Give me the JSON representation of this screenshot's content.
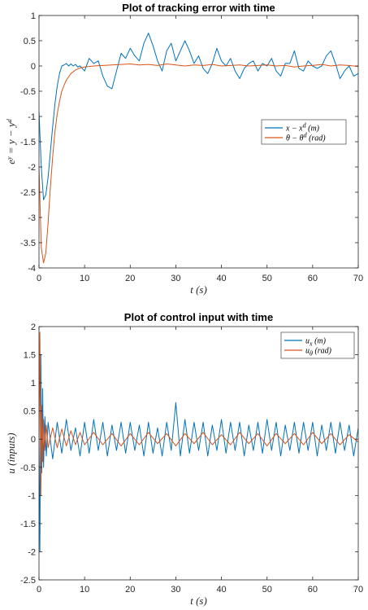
{
  "chart_data": [
    {
      "type": "line",
      "title": "Plot of tracking error with time",
      "xlabel": "t (s)",
      "ylabel": "e^y = y − y^d",
      "xlim": [
        0,
        70
      ],
      "ylim": [
        -4,
        1
      ],
      "xticks": [
        "0",
        "10",
        "20",
        "30",
        "40",
        "50",
        "60",
        "70"
      ],
      "yticks": [
        "1",
        "0.5",
        "0",
        "-0.5",
        "-1",
        "-1.5",
        "-2",
        "-2.5",
        "-3",
        "-3.5",
        "-4"
      ],
      "grid": false,
      "legend_position": "right",
      "series": [
        {
          "name": "x − x^d (m)",
          "color": "#0072BD",
          "x": [
            0,
            0.5,
            1,
            1.5,
            2,
            2.5,
            3,
            3.5,
            4,
            4.5,
            5,
            5.5,
            6,
            6.5,
            7,
            7.5,
            8,
            8.5,
            9,
            9.5,
            10,
            11,
            12,
            13,
            14,
            15,
            16,
            17,
            18,
            19,
            20,
            21,
            22,
            23,
            24,
            25,
            26,
            27,
            28,
            29,
            30,
            31,
            32,
            33,
            34,
            35,
            36,
            37,
            38,
            39,
            40,
            41,
            42,
            43,
            44,
            45,
            46,
            47,
            48,
            49,
            50,
            51,
            52,
            53,
            54,
            55,
            56,
            57,
            58,
            59,
            60,
            61,
            62,
            63,
            64,
            65,
            66,
            67,
            68,
            69,
            70
          ],
          "y": [
            -0.9,
            -2.0,
            -2.65,
            -2.55,
            -2.2,
            -1.7,
            -1.2,
            -0.75,
            -0.4,
            -0.15,
            0.0,
            0.02,
            0.05,
            0.0,
            0.04,
            0.0,
            0.03,
            -0.02,
            0.0,
            -0.05,
            -0.1,
            0.15,
            0.05,
            0.1,
            -0.2,
            -0.4,
            -0.45,
            -0.1,
            0.25,
            0.15,
            0.35,
            0.2,
            0.1,
            0.45,
            0.65,
            0.4,
            0.1,
            -0.1,
            0.3,
            0.45,
            0.1,
            0.3,
            0.5,
            0.3,
            0.05,
            0.2,
            -0.05,
            -0.15,
            0.05,
            0.35,
            0.1,
            0.0,
            0.15,
            -0.1,
            -0.25,
            -0.05,
            0.05,
            0.1,
            -0.1,
            0.05,
            0.0,
            0.15,
            -0.1,
            -0.2,
            0.05,
            0.05,
            0.3,
            -0.05,
            -0.1,
            0.1,
            0.0,
            -0.05,
            0.0,
            0.2,
            0.3,
            0.05,
            -0.25,
            -0.1,
            0.0,
            -0.2,
            -0.15
          ]
        },
        {
          "name": "θ − θ^d (rad)",
          "color": "#D95319",
          "x": [
            0,
            0.5,
            1,
            1.5,
            2,
            2.5,
            3,
            3.5,
            4,
            4.5,
            5,
            5.5,
            6,
            7,
            8,
            9,
            10,
            12,
            14,
            16,
            18,
            20,
            22,
            24,
            26,
            28,
            30,
            32,
            34,
            36,
            38,
            40,
            42,
            44,
            46,
            48,
            50,
            52,
            54,
            56,
            58,
            60,
            62,
            64,
            66,
            68,
            70
          ],
          "y": [
            -2.0,
            -3.6,
            -3.9,
            -3.7,
            -3.1,
            -2.4,
            -1.8,
            -1.3,
            -0.95,
            -0.7,
            -0.5,
            -0.38,
            -0.28,
            -0.15,
            -0.08,
            -0.04,
            -0.02,
            0.0,
            0.01,
            0.02,
            0.03,
            0.04,
            0.02,
            0.03,
            0.01,
            0.04,
            0.02,
            0.0,
            0.02,
            0.01,
            0.03,
            0.0,
            0.01,
            0.02,
            0.0,
            0.01,
            0.02,
            0.0,
            0.01,
            -0.02,
            0.0,
            0.01,
            0.03,
            0.0,
            0.02,
            0.01,
            -0.01
          ]
        }
      ]
    },
    {
      "type": "line",
      "title": "Plot of control input with time",
      "xlabel": "t (s)",
      "ylabel": "u (inputs)",
      "xlim": [
        0,
        70
      ],
      "ylim": [
        -2.5,
        2
      ],
      "xticks": [
        "0",
        "10",
        "20",
        "30",
        "40",
        "50",
        "60",
        "70"
      ],
      "yticks": [
        "2",
        "1.5",
        "1",
        "0.5",
        "0",
        "-0.5",
        "-1",
        "-1.5",
        "-2",
        "-2.5"
      ],
      "grid": false,
      "legend_position": "top-right",
      "series": [
        {
          "name": "u_x (m)",
          "color": "#0072BD",
          "x": [
            0,
            0.2,
            0.4,
            0.6,
            0.8,
            1,
            1.3,
            1.6,
            2,
            3,
            4,
            5,
            6,
            7,
            8,
            9,
            10,
            11,
            12,
            13,
            14,
            15,
            16,
            17,
            18,
            19,
            20,
            21,
            22,
            23,
            24,
            25,
            26,
            27,
            28,
            29,
            30,
            31,
            32,
            33,
            34,
            35,
            36,
            37,
            38,
            39,
            40,
            41,
            42,
            43,
            44,
            45,
            46,
            47,
            48,
            49,
            50,
            51,
            52,
            53,
            54,
            55,
            56,
            57,
            58,
            59,
            60,
            61,
            62,
            63,
            64,
            65,
            66,
            67,
            68,
            69,
            70
          ],
          "y": [
            0,
            -2.0,
            1.5,
            -0.6,
            0.9,
            -0.5,
            0.4,
            -0.3,
            0.3,
            -0.35,
            0.3,
            -0.25,
            0.35,
            -0.2,
            0.2,
            -0.3,
            0.3,
            -0.25,
            0.35,
            -0.2,
            0.3,
            -0.3,
            0.25,
            -0.2,
            0.3,
            -0.25,
            0.3,
            -0.2,
            0.25,
            -0.3,
            0.3,
            -0.25,
            0.2,
            -0.3,
            0.3,
            -0.2,
            0.65,
            -0.3,
            0.35,
            -0.25,
            0.3,
            -0.2,
            0.3,
            -0.3,
            0.25,
            -0.2,
            0.35,
            -0.25,
            0.3,
            -0.2,
            0.3,
            -0.3,
            0.25,
            -0.2,
            0.3,
            -0.25,
            0.35,
            -0.2,
            0.3,
            -0.3,
            0.25,
            -0.2,
            0.3,
            -0.25,
            0.3,
            -0.2,
            0.3,
            -0.3,
            0.25,
            -0.2,
            0.3,
            -0.25,
            0.3,
            -0.2,
            0.25,
            -0.3,
            0.2
          ]
        },
        {
          "name": "u_θ (rad)",
          "color": "#D95319",
          "x": [
            0,
            0.2,
            0.4,
            0.6,
            0.8,
            1,
            1.3,
            1.6,
            2,
            3,
            4,
            5,
            6,
            7,
            8,
            9,
            10,
            12,
            14,
            16,
            18,
            20,
            22,
            24,
            26,
            28,
            30,
            32,
            34,
            36,
            38,
            40,
            42,
            44,
            46,
            48,
            50,
            52,
            54,
            56,
            58,
            60,
            62,
            64,
            66,
            68,
            70
          ],
          "y": [
            0,
            1.9,
            -1.0,
            0.6,
            -0.4,
            0.35,
            -0.2,
            0.25,
            -0.15,
            0.2,
            -0.15,
            0.18,
            -0.12,
            0.15,
            -0.1,
            0.12,
            -0.1,
            0.12,
            -0.1,
            0.1,
            -0.12,
            0.1,
            -0.1,
            0.12,
            -0.08,
            0.1,
            -0.12,
            0.1,
            -0.08,
            0.12,
            -0.1,
            0.08,
            -0.1,
            0.12,
            -0.08,
            0.1,
            -0.12,
            0.1,
            -0.08,
            0.1,
            -0.1,
            0.12,
            -0.08,
            0.1,
            -0.1,
            0.08,
            -0.05
          ]
        }
      ]
    }
  ]
}
